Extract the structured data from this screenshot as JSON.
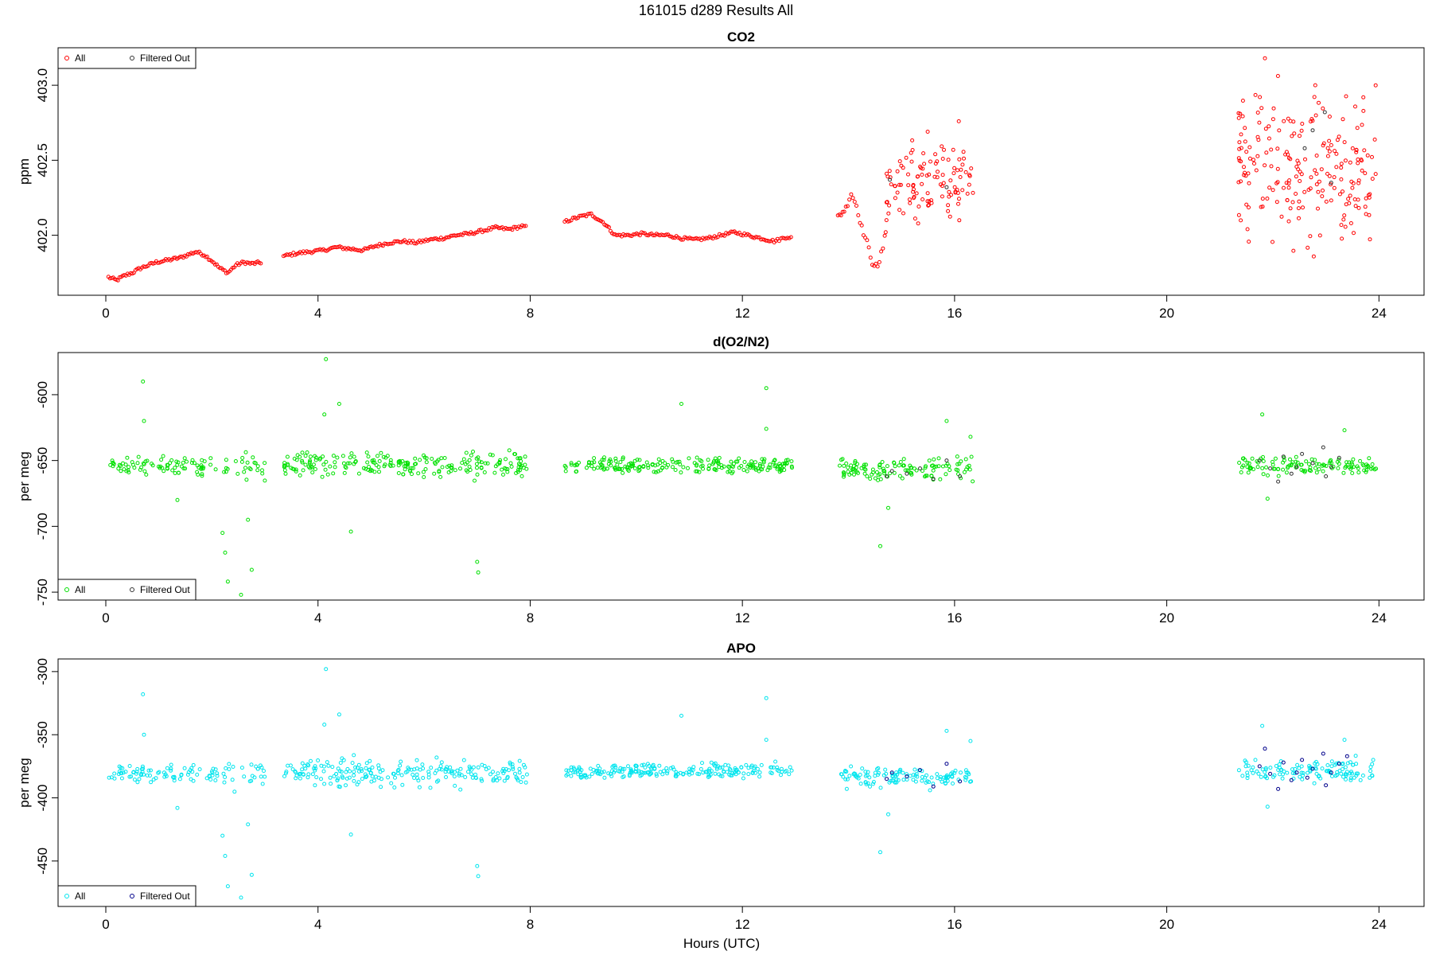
{
  "figure": {
    "title": "161015   d289   Results All",
    "xlabel": "Hours (UTC)"
  },
  "chart_data": [
    {
      "type": "scatter",
      "title": "CO2",
      "xlabel": "Hours (UTC)",
      "ylabel": "ppm",
      "xlim": [
        -0.9,
        24.85
      ],
      "ylim": [
        401.6,
        403.25
      ],
      "xticks": [
        0,
        4,
        8,
        12,
        16,
        20,
        24
      ],
      "yticks": [
        402.0,
        402.5,
        403.0
      ],
      "ytick_labels": [
        "402.0",
        "402.5",
        "403.0"
      ],
      "legend": "top-left",
      "series": [
        {
          "name": "All",
          "color": "#ff0000",
          "segments": [
            {
              "x": [
                0.05,
                0.2,
                0.35,
                0.5,
                0.65,
                0.8,
                0.95,
                1.1,
                1.25,
                1.4,
                1.55,
                1.7,
                1.85,
                2.0,
                2.15,
                2.3,
                2.45,
                2.6,
                2.75,
                2.95
              ],
              "y": [
                401.72,
                401.7,
                401.73,
                401.75,
                401.78,
                401.8,
                401.82,
                401.83,
                401.84,
                401.85,
                401.87,
                401.89,
                401.87,
                401.83,
                401.78,
                401.75,
                401.8,
                401.82,
                401.81,
                401.82
              ],
              "jitter": 0.02
            },
            {
              "x": [
                3.35,
                3.6,
                3.85,
                4.1,
                4.35,
                4.6,
                4.85,
                5.1,
                5.35,
                5.6,
                5.85,
                6.1,
                6.35,
                6.6,
                6.85,
                7.1,
                7.35,
                7.6,
                7.85,
                7.95
              ],
              "y": [
                401.86,
                401.88,
                401.89,
                401.9,
                401.92,
                401.91,
                401.9,
                401.93,
                401.95,
                401.96,
                401.95,
                401.97,
                401.98,
                402.0,
                402.01,
                402.03,
                402.05,
                402.04,
                402.06,
                402.05
              ],
              "jitter": 0.02
            },
            {
              "x": [
                8.65,
                8.9,
                9.15,
                9.4,
                9.6,
                9.85,
                10.1,
                10.35,
                10.6,
                10.85,
                11.1,
                11.35,
                11.6,
                11.85,
                12.1,
                12.35,
                12.6,
                12.85,
                12.95
              ],
              "y": [
                402.09,
                402.12,
                402.14,
                402.08,
                402.0,
                402.0,
                402.01,
                402.0,
                402.0,
                401.98,
                401.97,
                401.98,
                402.0,
                402.02,
                402.0,
                401.98,
                401.96,
                401.99,
                401.98
              ],
              "jitter": 0.02
            },
            {
              "x": [
                13.8,
                13.95,
                14.05,
                14.15,
                14.25,
                14.35,
                14.45,
                14.55,
                14.65,
                14.75
              ],
              "y": [
                402.12,
                402.18,
                402.28,
                402.2,
                402.05,
                401.95,
                401.82,
                401.78,
                401.92,
                402.2
              ],
              "jitter": 0.04
            }
          ],
          "scatter_regions": [
            {
              "x": [
                14.7,
                16.35
              ],
              "y": [
                401.98,
                402.72
              ],
              "n": 110
            },
            {
              "x": [
                21.35,
                23.95
              ],
              "y": [
                401.75,
                403.15
              ],
              "n": 210
            }
          ],
          "outliers": [
            {
              "x": 16.08,
              "y": 402.76
            },
            {
              "x": 21.85,
              "y": 403.18
            },
            {
              "x": 22.8,
              "y": 403.0
            }
          ]
        },
        {
          "name": "Filtered Out",
          "color": "#333333",
          "points": [
            {
              "x": 14.78,
              "y": 402.37
            },
            {
              "x": 15.85,
              "y": 402.32
            },
            {
              "x": 22.6,
              "y": 402.58
            },
            {
              "x": 22.75,
              "y": 402.7
            },
            {
              "x": 22.98,
              "y": 402.82
            },
            {
              "x": 23.1,
              "y": 402.35
            }
          ]
        }
      ]
    },
    {
      "type": "scatter",
      "title": "d(O2/N2)",
      "xlabel": "Hours (UTC)",
      "ylabel": "per meg",
      "xlim": [
        -0.9,
        24.85
      ],
      "ylim": [
        -756,
        -568
      ],
      "xticks": [
        0,
        4,
        8,
        12,
        16,
        20,
        24
      ],
      "yticks": [
        -750,
        -700,
        -650,
        -600
      ],
      "ytick_labels": [
        "-750",
        "-700",
        "-650",
        "-600"
      ],
      "legend": "bottom-left",
      "series": [
        {
          "name": "All",
          "color": "#00e000",
          "scatter_regions": [
            {
              "x": [
                0.05,
                2.1
              ],
              "y": [
                -665,
                -643
              ],
              "n": 80
            },
            {
              "x": [
                2.2,
                3.0
              ],
              "y": [
                -672,
                -638
              ],
              "n": 25
            },
            {
              "x": [
                3.35,
                7.95
              ],
              "y": [
                -668,
                -640
              ],
              "n": 220
            },
            {
              "x": [
                8.65,
                12.95
              ],
              "y": [
                -662,
                -645
              ],
              "n": 210
            },
            {
              "x": [
                13.8,
                16.35
              ],
              "y": [
                -668,
                -645
              ],
              "n": 120
            },
            {
              "x": [
                21.35,
                23.95
              ],
              "y": [
                -665,
                -643
              ],
              "n": 120
            }
          ],
          "outliers": [
            {
              "x": 0.7,
              "y": -590
            },
            {
              "x": 0.72,
              "y": -620
            },
            {
              "x": 1.35,
              "y": -680
            },
            {
              "x": 2.2,
              "y": -705
            },
            {
              "x": 2.25,
              "y": -720
            },
            {
              "x": 2.3,
              "y": -742
            },
            {
              "x": 2.55,
              "y": -752
            },
            {
              "x": 2.75,
              "y": -733
            },
            {
              "x": 2.68,
              "y": -695
            },
            {
              "x": 4.15,
              "y": -573
            },
            {
              "x": 4.4,
              "y": -607
            },
            {
              "x": 4.12,
              "y": -615
            },
            {
              "x": 4.62,
              "y": -704
            },
            {
              "x": 7.0,
              "y": -727
            },
            {
              "x": 7.02,
              "y": -735
            },
            {
              "x": 10.85,
              "y": -607
            },
            {
              "x": 12.45,
              "y": -595
            },
            {
              "x": 12.45,
              "y": -626
            },
            {
              "x": 14.6,
              "y": -715
            },
            {
              "x": 14.75,
              "y": -686
            },
            {
              "x": 15.85,
              "y": -620
            },
            {
              "x": 16.3,
              "y": -632
            },
            {
              "x": 21.8,
              "y": -615
            },
            {
              "x": 21.9,
              "y": -679
            },
            {
              "x": 23.35,
              "y": -627
            }
          ]
        },
        {
          "name": "Filtered Out",
          "color": "#333333",
          "points": [
            {
              "x": 14.72,
              "y": -662
            },
            {
              "x": 14.82,
              "y": -658
            },
            {
              "x": 15.1,
              "y": -660
            },
            {
              "x": 15.35,
              "y": -656
            },
            {
              "x": 15.6,
              "y": -664
            },
            {
              "x": 15.85,
              "y": -650
            },
            {
              "x": 16.1,
              "y": -662
            },
            {
              "x": 21.75,
              "y": -650
            },
            {
              "x": 21.95,
              "y": -656
            },
            {
              "x": 22.2,
              "y": -647
            },
            {
              "x": 22.35,
              "y": -660
            },
            {
              "x": 22.55,
              "y": -645
            },
            {
              "x": 22.75,
              "y": -652
            },
            {
              "x": 22.95,
              "y": -640
            },
            {
              "x": 23.1,
              "y": -655
            },
            {
              "x": 23.25,
              "y": -648
            },
            {
              "x": 22.45,
              "y": -655
            },
            {
              "x": 23.0,
              "y": -662
            },
            {
              "x": 22.1,
              "y": -666
            }
          ]
        }
      ]
    },
    {
      "type": "scatter",
      "title": "APO",
      "xlabel": "Hours (UTC)",
      "ylabel": "per meg",
      "xlim": [
        -0.9,
        24.85
      ],
      "ylim": [
        -486,
        -290
      ],
      "xticks": [
        0,
        4,
        8,
        12,
        16,
        20,
        24
      ],
      "yticks": [
        -450,
        -400,
        -350,
        -300
      ],
      "ytick_labels": [
        "-450",
        "-400",
        "-350",
        "-300"
      ],
      "legend": "bottom-left",
      "series": [
        {
          "name": "All",
          "color": "#00e5ee",
          "scatter_regions": [
            {
              "x": [
                0.05,
                2.1
              ],
              "y": [
                -392,
                -370
              ],
              "n": 80
            },
            {
              "x": [
                2.2,
                3.0
              ],
              "y": [
                -398,
                -362
              ],
              "n": 25
            },
            {
              "x": [
                3.35,
                7.95
              ],
              "y": [
                -395,
                -365
              ],
              "n": 220
            },
            {
              "x": [
                8.65,
                12.95
              ],
              "y": [
                -387,
                -370
              ],
              "n": 210
            },
            {
              "x": [
                13.8,
                16.35
              ],
              "y": [
                -395,
                -372
              ],
              "n": 120
            },
            {
              "x": [
                21.35,
                23.95
              ],
              "y": [
                -392,
                -366
              ],
              "n": 120
            }
          ],
          "outliers": [
            {
              "x": 0.7,
              "y": -318
            },
            {
              "x": 0.72,
              "y": -350
            },
            {
              "x": 1.35,
              "y": -408
            },
            {
              "x": 2.2,
              "y": -430
            },
            {
              "x": 2.25,
              "y": -446
            },
            {
              "x": 2.3,
              "y": -470
            },
            {
              "x": 2.55,
              "y": -479
            },
            {
              "x": 2.75,
              "y": -461
            },
            {
              "x": 2.68,
              "y": -421
            },
            {
              "x": 4.15,
              "y": -298
            },
            {
              "x": 4.4,
              "y": -334
            },
            {
              "x": 4.12,
              "y": -342
            },
            {
              "x": 4.62,
              "y": -429
            },
            {
              "x": 7.0,
              "y": -454
            },
            {
              "x": 7.02,
              "y": -462
            },
            {
              "x": 10.85,
              "y": -335
            },
            {
              "x": 12.45,
              "y": -321
            },
            {
              "x": 12.45,
              "y": -354
            },
            {
              "x": 14.6,
              "y": -443
            },
            {
              "x": 14.75,
              "y": -413
            },
            {
              "x": 15.85,
              "y": -347
            },
            {
              "x": 16.3,
              "y": -355
            },
            {
              "x": 21.8,
              "y": -343
            },
            {
              "x": 21.9,
              "y": -407
            },
            {
              "x": 23.35,
              "y": -354
            }
          ]
        },
        {
          "name": "Filtered Out",
          "color": "#00008b",
          "points": [
            {
              "x": 14.72,
              "y": -385
            },
            {
              "x": 14.82,
              "y": -380
            },
            {
              "x": 15.1,
              "y": -383
            },
            {
              "x": 15.35,
              "y": -378
            },
            {
              "x": 15.6,
              "y": -391
            },
            {
              "x": 15.85,
              "y": -373
            },
            {
              "x": 16.1,
              "y": -387
            },
            {
              "x": 21.75,
              "y": -375
            },
            {
              "x": 21.95,
              "y": -381
            },
            {
              "x": 22.2,
              "y": -372
            },
            {
              "x": 22.35,
              "y": -386
            },
            {
              "x": 22.55,
              "y": -370
            },
            {
              "x": 22.75,
              "y": -377
            },
            {
              "x": 22.95,
              "y": -365
            },
            {
              "x": 23.1,
              "y": -380
            },
            {
              "x": 23.25,
              "y": -373
            },
            {
              "x": 22.45,
              "y": -380
            },
            {
              "x": 23.0,
              "y": -390
            },
            {
              "x": 22.1,
              "y": -393
            },
            {
              "x": 21.85,
              "y": -361
            },
            {
              "x": 23.4,
              "y": -367
            },
            {
              "x": 22.65,
              "y": -384
            }
          ]
        }
      ]
    }
  ]
}
